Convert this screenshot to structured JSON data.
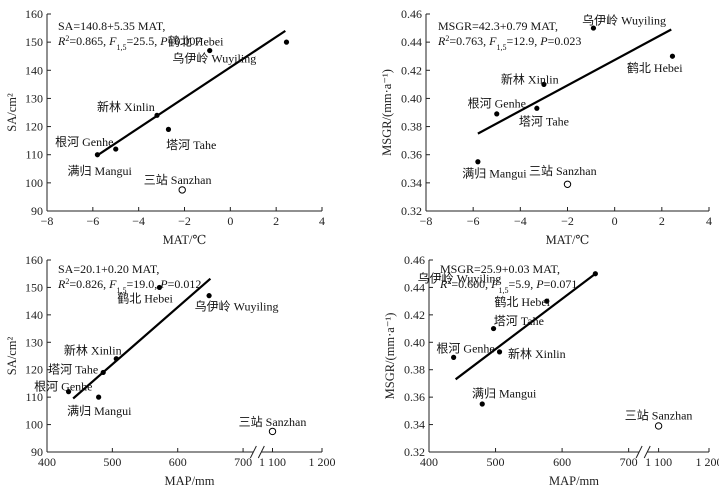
{
  "chart_data": [
    {
      "type": "scatter",
      "panel": "top-left",
      "xlabel": "MAT/℃",
      "ylabel": "SA/cm²",
      "xlim": [
        -8,
        4
      ],
      "ylim": [
        90,
        160
      ],
      "xticks": [
        -8,
        -6,
        -4,
        -2,
        0,
        2,
        4
      ],
      "xtick_labels": [
        "−8",
        "−6",
        "−4",
        "−2",
        "0",
        "2",
        "4"
      ],
      "yticks": [
        90,
        100,
        110,
        120,
        130,
        140,
        150,
        160
      ],
      "ytick_labels": [
        "90",
        "100",
        "110",
        "120",
        "130",
        "140",
        "150",
        "160"
      ],
      "equation": [
        [
          {
            "t": "SA=140.8+5.35 MAT,"
          }
        ],
        [
          {
            "t": "R",
            "i": true
          },
          {
            "t": "2",
            "sup": true
          },
          {
            "t": "=0.865, "
          },
          {
            "t": "F",
            "i": true
          },
          {
            "t": "1,5",
            "sub": true
          },
          {
            "t": "=25.5, "
          },
          {
            "t": "P",
            "i": true
          },
          {
            "t": "=0.007"
          }
        ]
      ],
      "fit": {
        "x": [
          -5.8,
          2.4
        ],
        "y": [
          109.8,
          154.0
        ]
      },
      "points": [
        {
          "name": "鹤北 Hebei",
          "x": 2.45,
          "y": 150,
          "open": false,
          "lx": -0.3,
          "ly": 150.2,
          "anchor": "end"
        },
        {
          "name": "乌伊岭 Wuyiling",
          "x": -0.9,
          "y": 147,
          "open": false,
          "lx": -0.7,
          "ly": 144.2,
          "anchor": "middle"
        },
        {
          "name": "新林 Xinlin",
          "x": -3.2,
          "y": 124,
          "open": false,
          "lx": -3.3,
          "ly": 127.0,
          "anchor": "end"
        },
        {
          "name": "塔河 Tahe",
          "x": -2.7,
          "y": 119,
          "open": false,
          "lx": -2.8,
          "ly": 113.5,
          "anchor": "start"
        },
        {
          "name": "根河 Genhe",
          "x": -5.0,
          "y": 112,
          "open": false,
          "lx": -5.1,
          "ly": 114.5,
          "anchor": "end"
        },
        {
          "name": "满归 Mangui",
          "x": -5.8,
          "y": 110,
          "open": false,
          "lx": -5.7,
          "ly": 104.3,
          "anchor": "middle"
        },
        {
          "name": "三站 Sanzhan",
          "x": -2.1,
          "y": 97.5,
          "open": true,
          "lx": -2.3,
          "ly": 101.0,
          "anchor": "middle"
        }
      ]
    },
    {
      "type": "scatter",
      "panel": "top-right",
      "xlabel": "MAT/℃",
      "ylabel": "MSGR/(mm·a⁻¹)",
      "xlim": [
        -8,
        4
      ],
      "ylim": [
        0.32,
        0.46
      ],
      "xticks": [
        -8,
        -6,
        -4,
        -2,
        0,
        2,
        4
      ],
      "xtick_labels": [
        "−8",
        "−6",
        "−4",
        "−2",
        "0",
        "2",
        "4"
      ],
      "yticks": [
        0.32,
        0.34,
        0.36,
        0.38,
        0.4,
        0.42,
        0.44,
        0.46
      ],
      "ytick_labels": [
        "0.32",
        "0.34",
        "0.36",
        "0.38",
        "0.40",
        "0.42",
        "0.44",
        "0.46"
      ],
      "equation": [
        [
          {
            "t": "MSGR=42.3+0.79 MAT,"
          }
        ],
        [
          {
            "t": "R",
            "i": true
          },
          {
            "t": "2",
            "sup": true
          },
          {
            "t": "=0.763, "
          },
          {
            "t": "F",
            "i": true
          },
          {
            "t": "1,5",
            "sub": true
          },
          {
            "t": "=12.9, "
          },
          {
            "t": "P",
            "i": true
          },
          {
            "t": "=0.023"
          }
        ]
      ],
      "fit": {
        "x": [
          -5.8,
          2.4
        ],
        "y": [
          0.375,
          0.449
        ]
      },
      "points": [
        {
          "name": "乌伊岭 Wuyiling",
          "x": -0.9,
          "y": 0.45,
          "open": false,
          "lx": 0.4,
          "ly": 0.4555,
          "anchor": "middle"
        },
        {
          "name": "鹤北 Hebei",
          "x": 2.45,
          "y": 0.43,
          "open": false,
          "lx": 1.7,
          "ly": 0.4215,
          "anchor": "middle"
        },
        {
          "name": "新林 Xinlin",
          "x": -3.0,
          "y": 0.41,
          "open": false,
          "lx": -3.6,
          "ly": 0.4135,
          "anchor": "middle"
        },
        {
          "name": "根河 Genhe",
          "x": -5.0,
          "y": 0.389,
          "open": false,
          "lx": -5.0,
          "ly": 0.3965,
          "anchor": "middle"
        },
        {
          "name": "塔河 Tahe",
          "x": -3.3,
          "y": 0.393,
          "open": false,
          "lx": -3.0,
          "ly": 0.3835,
          "anchor": "middle"
        },
        {
          "name": "满归 Mangui",
          "x": -5.8,
          "y": 0.355,
          "open": false,
          "lx": -5.1,
          "ly": 0.3465,
          "anchor": "middle"
        },
        {
          "name": "三站 Sanzhan",
          "x": -2.0,
          "y": 0.339,
          "open": true,
          "lx": -2.2,
          "ly": 0.3485,
          "anchor": "middle"
        }
      ]
    },
    {
      "type": "scatter",
      "panel": "bottom-left",
      "xlabel": "MAP/mm",
      "ylabel": "SA/cm²",
      "xlim": [
        400,
        1200
      ],
      "ylim": [
        90,
        160
      ],
      "xticks": [
        400,
        500,
        600,
        700,
        1100,
        1200
      ],
      "xtick_labels": [
        "400",
        "500",
        "600",
        "700",
        "1 100",
        "1 200"
      ],
      "axis_break_x": 700,
      "yticks": [
        90,
        100,
        110,
        120,
        130,
        140,
        150,
        160
      ],
      "ytick_labels": [
        "90",
        "100",
        "110",
        "120",
        "130",
        "140",
        "150",
        "160"
      ],
      "equation": [
        [
          {
            "t": "SA=20.1+0.20 MAT,"
          }
        ],
        [
          {
            "t": "R",
            "i": true
          },
          {
            "t": "2",
            "sup": true
          },
          {
            "t": "=0.826, "
          },
          {
            "t": "F",
            "i": true
          },
          {
            "t": "1,5",
            "sub": true
          },
          {
            "t": "=19.0, "
          },
          {
            "t": "P",
            "i": true
          },
          {
            "t": "=0.012"
          }
        ]
      ],
      "fit": {
        "x": [
          440,
          650
        ],
        "y": [
          109.5,
          153.2
        ]
      },
      "points": [
        {
          "name": "鹤北 Hebei",
          "x": 572,
          "y": 150,
          "open": false,
          "lx": 550,
          "ly": 146.0,
          "anchor": "middle"
        },
        {
          "name": "乌伊岭 Wuyiling",
          "x": 648,
          "y": 147,
          "open": false,
          "lx": 690,
          "ly": 143.0,
          "anchor": "middle"
        },
        {
          "name": "新林 Xinlin",
          "x": 506,
          "y": 124,
          "open": false,
          "lx": 470,
          "ly": 127.0,
          "anchor": "middle"
        },
        {
          "name": "塔河 Tahe",
          "x": 486,
          "y": 119,
          "open": false,
          "lx": 440,
          "ly": 120.0,
          "anchor": "middle"
        },
        {
          "name": "根河 Genhe",
          "x": 433,
          "y": 112,
          "open": false,
          "lx": 425,
          "ly": 113.8,
          "anchor": "middle"
        },
        {
          "name": "满归 Mangui",
          "x": 479,
          "y": 110,
          "open": false,
          "lx": 480,
          "ly": 105.0,
          "anchor": "middle"
        },
        {
          "name": "三站 Sanzhan",
          "x": 1100,
          "y": 97.5,
          "open": true,
          "lx": 1100,
          "ly": 101.0,
          "anchor": "middle"
        }
      ]
    },
    {
      "type": "scatter",
      "panel": "bottom-right",
      "xlabel": "MAP/mm",
      "ylabel": "MSGR/(mm·a⁻¹)",
      "xlim": [
        400,
        1200
      ],
      "ylim": [
        0.32,
        0.46
      ],
      "xticks": [
        400,
        500,
        600,
        700,
        1100,
        1200
      ],
      "xtick_labels": [
        "400",
        "500",
        "600",
        "700",
        "1 100",
        "1 200"
      ],
      "axis_break_x": 700,
      "yticks": [
        0.32,
        0.34,
        0.36,
        0.38,
        0.4,
        0.42,
        0.44,
        0.46
      ],
      "ytick_labels": [
        "0.32",
        "0.34",
        "0.36",
        "0.38",
        "0.40",
        "0.42",
        "0.44",
        "0.46"
      ],
      "equation": [
        [
          {
            "t": "MSGR=25.9+0.03 MAT,"
          }
        ],
        [
          {
            "t": "R",
            "i": true
          },
          {
            "t": "2",
            "sup": true
          },
          {
            "t": "=0.600, "
          },
          {
            "t": "F",
            "i": true
          },
          {
            "t": "1,5",
            "sub": true
          },
          {
            "t": "=5.9, "
          },
          {
            "t": "P",
            "i": true
          },
          {
            "t": "=0.071"
          }
        ]
      ],
      "fit": {
        "x": [
          440,
          650
        ],
        "y": [
          0.373,
          0.45
        ]
      },
      "points": [
        {
          "name": "乌伊岭 Wuyiling",
          "x": 650,
          "y": 0.45,
          "open": false,
          "lx": 705,
          "ly": 0.4465,
          "anchor": "middle"
        },
        {
          "name": "鹤北 Hebei",
          "x": 577,
          "y": 0.43,
          "open": false,
          "lx": 540,
          "ly": 0.4295,
          "anchor": "middle"
        },
        {
          "name": "塔河 Tahe",
          "x": 497,
          "y": 0.41,
          "open": false,
          "lx": 535,
          "ly": 0.4155,
          "anchor": "middle"
        },
        {
          "name": "新林 Xinlin",
          "x": 506,
          "y": 0.393,
          "open": false,
          "lx": 562,
          "ly": 0.3915,
          "anchor": "middle"
        },
        {
          "name": "根河 Genhe",
          "x": 437,
          "y": 0.389,
          "open": false,
          "lx": 455,
          "ly": 0.3955,
          "anchor": "middle"
        },
        {
          "name": "满归 Mangui",
          "x": 480,
          "y": 0.355,
          "open": false,
          "lx": 513,
          "ly": 0.3625,
          "anchor": "middle"
        },
        {
          "name": "三站 Sanzhan",
          "x": 1100,
          "y": 0.339,
          "open": true,
          "lx": 1100,
          "ly": 0.3465,
          "anchor": "middle"
        }
      ]
    }
  ]
}
